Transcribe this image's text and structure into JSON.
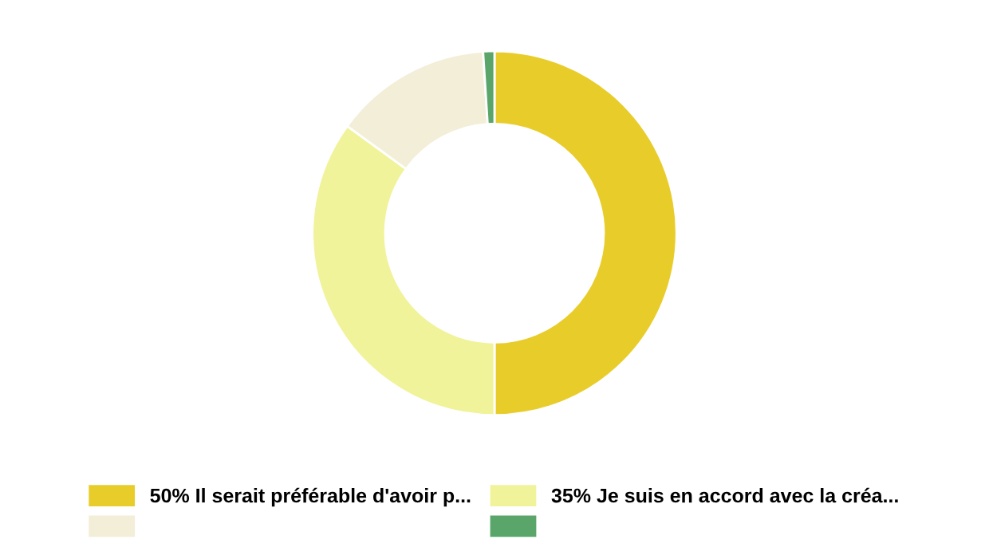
{
  "chart_data": {
    "type": "donut",
    "categories": [
      "50% Il serait préférable d'avoir p...",
      "35% Je suis en accord avec la créa...",
      null,
      null
    ],
    "values": [
      50,
      35,
      14,
      1
    ],
    "colors": [
      "#e8cd2a",
      "#f0f39a",
      "#f3eed8",
      "#5aa66a"
    ],
    "legend": "bottom"
  }
}
